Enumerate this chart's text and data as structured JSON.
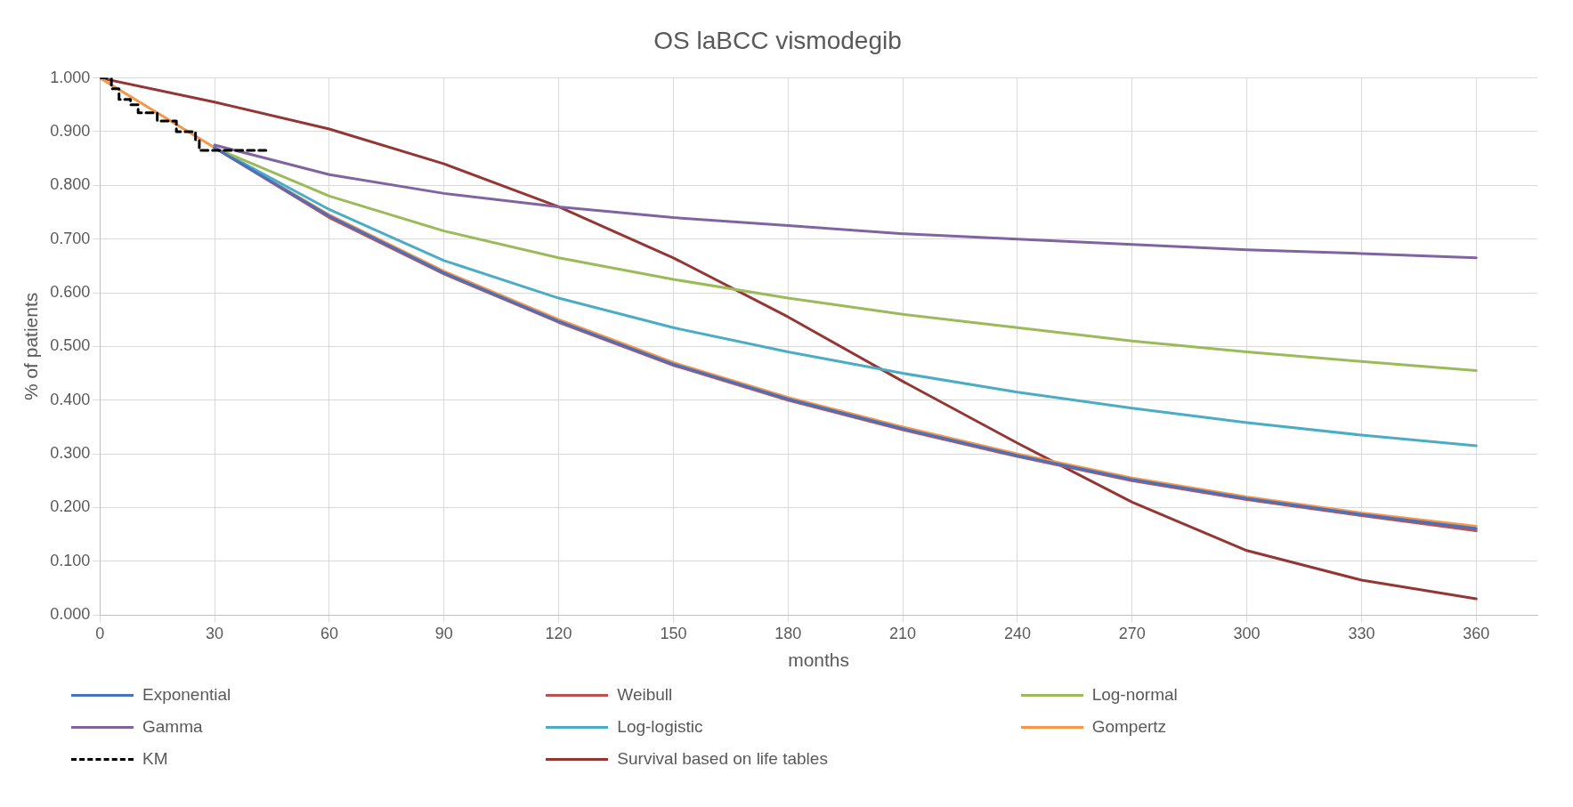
{
  "chart_data": {
    "type": "line",
    "title": "OS laBCC vismodegib",
    "xlabel": "months",
    "ylabel": "% of patients",
    "x": [
      0,
      30,
      60,
      90,
      120,
      150,
      180,
      210,
      240,
      270,
      300,
      330,
      360
    ],
    "xlim": [
      0,
      376
    ],
    "xticks": [
      0,
      30,
      60,
      90,
      120,
      150,
      180,
      210,
      240,
      270,
      300,
      330,
      360
    ],
    "ylim": [
      0,
      1
    ],
    "yticks": [
      {
        "value": 0,
        "label": "0.000"
      },
      {
        "value": 0.1,
        "label": "0.100"
      },
      {
        "value": 0.2,
        "label": "0.200"
      },
      {
        "value": 0.3,
        "label": "0.300"
      },
      {
        "value": 0.4,
        "label": "0.400"
      },
      {
        "value": 0.5,
        "label": "0.500"
      },
      {
        "value": 0.6,
        "label": "0.600"
      },
      {
        "value": 0.7,
        "label": "0.700"
      },
      {
        "value": 0.8,
        "label": "0.800"
      },
      {
        "value": 0.9,
        "label": "0.900"
      },
      {
        "value": 1,
        "label": "1.000"
      }
    ],
    "grid": true,
    "legend": "bottom",
    "marker": "none",
    "line_style": "solid",
    "series": [
      {
        "name": "Exponential",
        "color": "#4472c4",
        "values": [
          null,
          0.87,
          0.743,
          0.637,
          0.547,
          0.467,
          0.402,
          0.347,
          0.297,
          0.252,
          0.217,
          0.187,
          0.161
        ]
      },
      {
        "name": "Weibull",
        "color": "#c0504d",
        "values": [
          null,
          0.87,
          0.74,
          0.635,
          0.545,
          0.465,
          0.4,
          0.345,
          0.295,
          0.25,
          0.215,
          0.185,
          0.157
        ]
      },
      {
        "name": "Log-normal",
        "color": "#9bbb59",
        "values": [
          null,
          0.87,
          0.78,
          0.715,
          0.665,
          0.625,
          0.59,
          0.56,
          0.535,
          0.51,
          0.49,
          0.472,
          0.455
        ]
      },
      {
        "name": "Gamma",
        "color": "#8064a2",
        "values": [
          null,
          0.875,
          0.82,
          0.785,
          0.76,
          0.74,
          0.725,
          0.71,
          0.7,
          0.69,
          0.68,
          0.673,
          0.665
        ]
      },
      {
        "name": "Log-logistic",
        "color": "#4bacc6",
        "values": [
          null,
          0.87,
          0.755,
          0.66,
          0.59,
          0.535,
          0.49,
          0.45,
          0.415,
          0.385,
          0.358,
          0.335,
          0.315
        ]
      },
      {
        "name": "Gompertz",
        "color": "#f79646",
        "values": [
          1,
          0.87,
          0.745,
          0.64,
          0.55,
          0.47,
          0.405,
          0.35,
          0.3,
          0.255,
          0.22,
          0.19,
          0.165
        ]
      },
      {
        "name": "KM",
        "type": "step",
        "color": "#000000",
        "line_style": "dashed",
        "x": [
          0,
          3,
          5,
          8,
          10,
          15,
          20,
          25,
          26,
          44
        ],
        "values": [
          1,
          0.98,
          0.96,
          0.95,
          0.935,
          0.92,
          0.9,
          0.885,
          0.865,
          0.865
        ]
      },
      {
        "name": "Survival based on life tables",
        "color": "#943634",
        "values": [
          1,
          0.955,
          0.905,
          0.84,
          0.76,
          0.665,
          0.555,
          0.435,
          0.32,
          0.21,
          0.12,
          0.065,
          0.03
        ]
      }
    ]
  }
}
